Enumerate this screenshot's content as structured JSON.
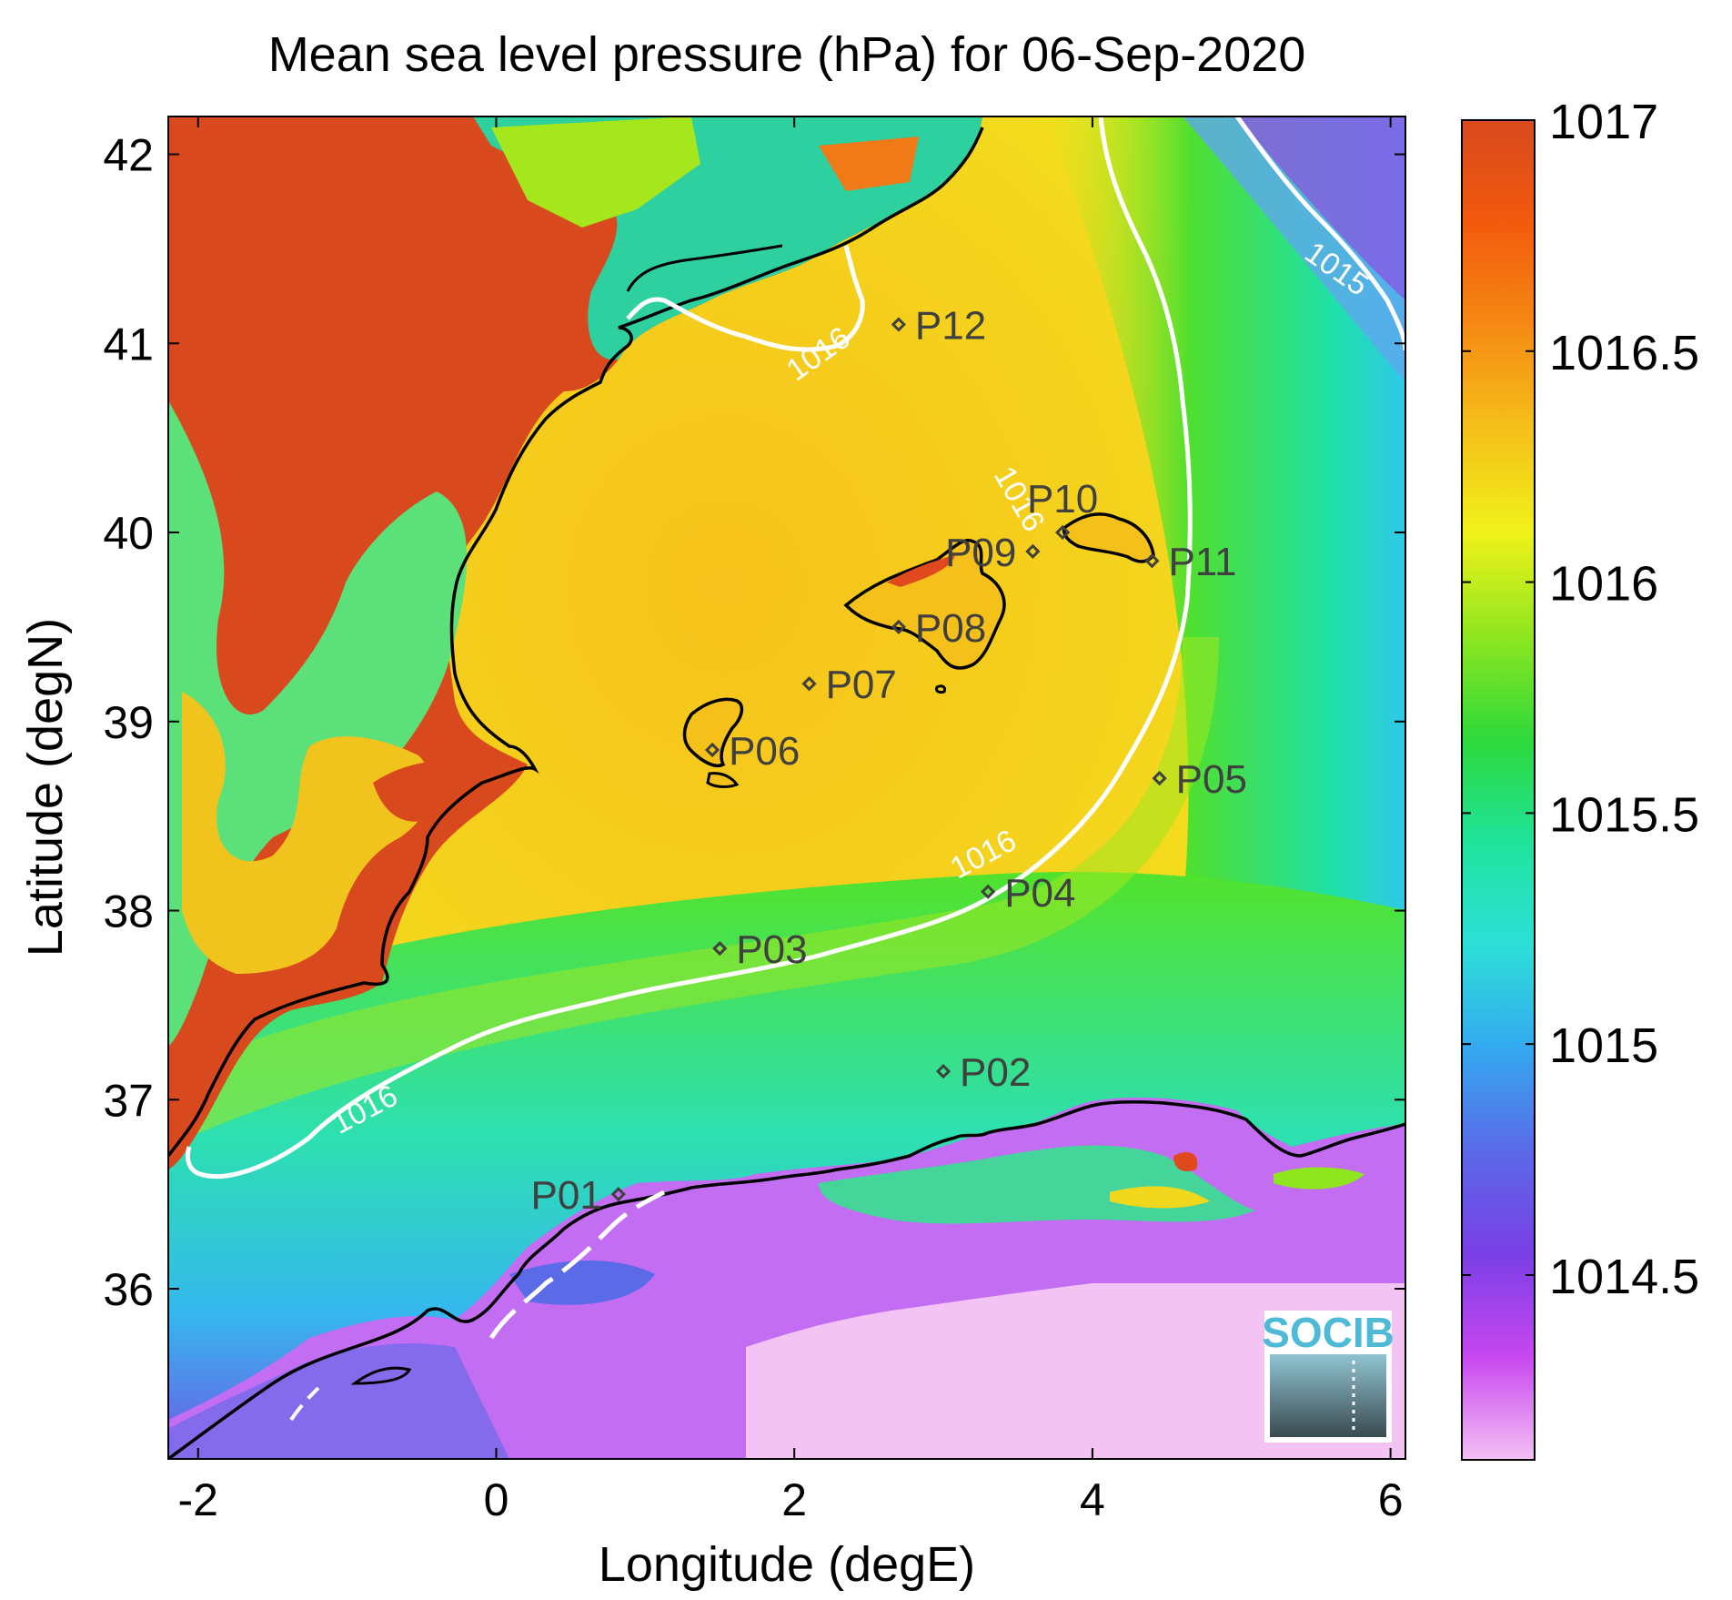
{
  "title": "Mean sea level pressure (hPa) for 06-Sep-2020",
  "xlabel": "Longitude (degE)",
  "ylabel": "Latitude (degN)",
  "axes": {
    "x_range": [
      -2.2,
      6.1
    ],
    "y_range": [
      35.1,
      42.2
    ],
    "x_ticks": [
      {
        "v": -2,
        "label": "-2"
      },
      {
        "v": 0,
        "label": "0"
      },
      {
        "v": 2,
        "label": "2"
      },
      {
        "v": 4,
        "label": "4"
      },
      {
        "v": 6,
        "label": "6"
      }
    ],
    "y_ticks": [
      {
        "v": 42,
        "label": "42"
      },
      {
        "v": 41,
        "label": "41"
      },
      {
        "v": 40,
        "label": "40"
      },
      {
        "v": 39,
        "label": "39"
      },
      {
        "v": 38,
        "label": "38"
      },
      {
        "v": 37,
        "label": "37"
      },
      {
        "v": 36,
        "label": "36"
      }
    ]
  },
  "colorbar": {
    "range": [
      1014.1,
      1017.0
    ],
    "ticks": [
      {
        "v": 1017,
        "label": "1017"
      },
      {
        "v": 1016.5,
        "label": "1016.5"
      },
      {
        "v": 1016,
        "label": "1016"
      },
      {
        "v": 1015.5,
        "label": "1015.5"
      },
      {
        "v": 1015,
        "label": "1015"
      },
      {
        "v": 1014.5,
        "label": "1014.5"
      }
    ],
    "colors": [
      "#f3c0f3",
      "#c847f0",
      "#7a3fe6",
      "#5a6ae8",
      "#33a9ef",
      "#2de0d8",
      "#1fe39a",
      "#2ed93a",
      "#8fe61f",
      "#f0f21a",
      "#f5c01a",
      "#f58a14",
      "#f35a0d",
      "#d84a1e"
    ]
  },
  "contour_labels": [
    {
      "text": "1016",
      "lon": 3.45,
      "lat": 40.15,
      "angle": 60
    },
    {
      "text": "1015",
      "lon": 5.6,
      "lat": 41.35,
      "angle": 35
    },
    {
      "text": "1016",
      "lon": 2.2,
      "lat": 40.9,
      "angle": -35
    },
    {
      "text": "1016",
      "lon": 3.3,
      "lat": 38.25,
      "angle": -28
    },
    {
      "text": "1016",
      "lon": -0.85,
      "lat": 36.9,
      "angle": -28
    }
  ],
  "stations": [
    {
      "id": "P01",
      "label": "P01",
      "lon": 0.82,
      "lat": 36.5,
      "side": "left"
    },
    {
      "id": "P02",
      "label": "P02",
      "lon": 3.0,
      "lat": 37.15,
      "side": "right"
    },
    {
      "id": "P03",
      "label": "P03",
      "lon": 1.5,
      "lat": 37.8,
      "side": "right"
    },
    {
      "id": "P04",
      "label": "P04",
      "lon": 3.3,
      "lat": 38.1,
      "side": "right"
    },
    {
      "id": "P05",
      "label": "P05",
      "lon": 4.45,
      "lat": 38.7,
      "side": "right"
    },
    {
      "id": "P06",
      "label": "P06",
      "lon": 1.45,
      "lat": 38.85,
      "side": "right"
    },
    {
      "id": "P07",
      "label": "P07",
      "lon": 2.1,
      "lat": 39.2,
      "side": "right"
    },
    {
      "id": "P08",
      "label": "P08",
      "lon": 2.7,
      "lat": 39.5,
      "side": "right"
    },
    {
      "id": "P09",
      "label": "P09",
      "lon": 3.6,
      "lat": 39.9,
      "side": "left"
    },
    {
      "id": "P10",
      "label": "P10",
      "lon": 3.8,
      "lat": 40.0,
      "side": "up"
    },
    {
      "id": "P11",
      "label": "P11",
      "lon": 4.4,
      "lat": 39.85,
      "side": "right"
    },
    {
      "id": "P12",
      "label": "P12",
      "lon": 2.7,
      "lat": 41.1,
      "side": "right"
    }
  ],
  "logo": {
    "text": "SOCIB"
  }
}
